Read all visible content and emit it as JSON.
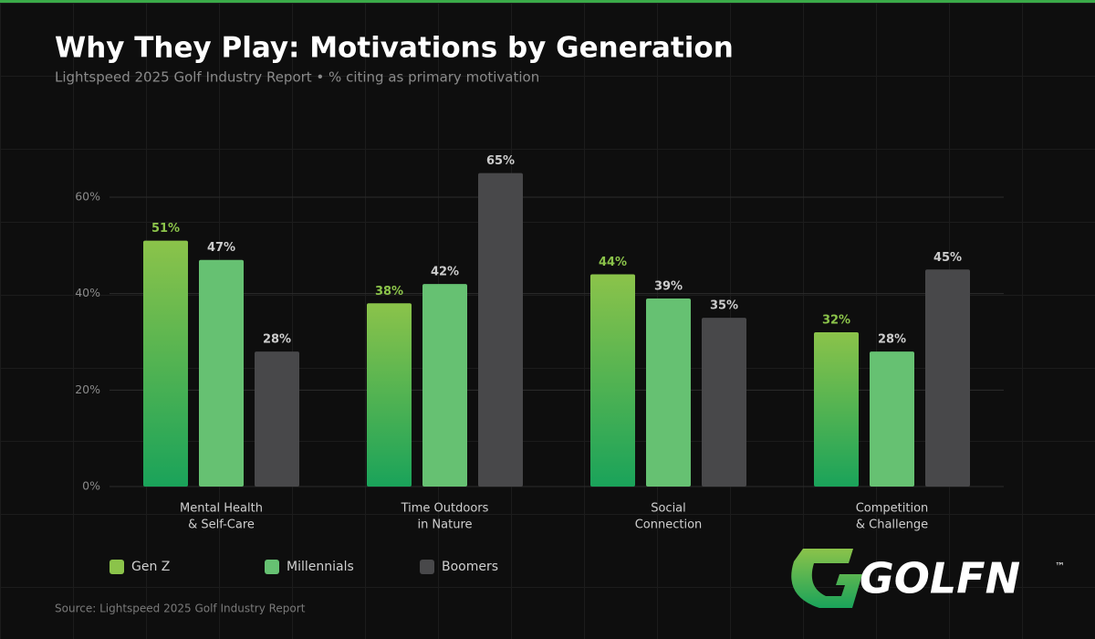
{
  "chart_data": {
    "type": "bar",
    "title": "Why They Play: Motivations by Generation",
    "subtitle": "Lightspeed 2025 Golf Industry Report  •  % citing as primary motivation",
    "source": "Source: Lightspeed 2025 Golf Industry Report",
    "logo": {
      "text": "GOLFN",
      "mark": "™"
    },
    "categories": [
      [
        "Mental Health",
        "& Self-Care"
      ],
      [
        "Time Outdoors",
        "in Nature"
      ],
      [
        "Social",
        "Connection"
      ],
      [
        "Competition",
        "& Challenge"
      ]
    ],
    "series": [
      {
        "name": "Gen Z",
        "color": "#8bc34a",
        "gradient_end": "#1aa35a",
        "label_color": "#8bc34a",
        "values": [
          51,
          38,
          44,
          32
        ],
        "value_labels": [
          "51%",
          "38%",
          "44%",
          "32%"
        ]
      },
      {
        "name": "Millennials",
        "color": "#66c172",
        "label_color": "#cccccc",
        "values": [
          47,
          42,
          39,
          28
        ],
        "value_labels": [
          "47%",
          "42%",
          "39%",
          "28%"
        ]
      },
      {
        "name": "Boomers",
        "color": "#48484a",
        "label_color": "#cccccc",
        "values": [
          28,
          65,
          35,
          45
        ],
        "value_labels": [
          "28%",
          "65%",
          "35%",
          "45%"
        ]
      }
    ],
    "ylim": [
      0,
      70
    ],
    "yticks": [
      {
        "value": 0,
        "label": "0%"
      },
      {
        "value": 20,
        "label": "20%"
      },
      {
        "value": 40,
        "label": "40%"
      },
      {
        "value": 60,
        "label": "60%"
      }
    ],
    "grid": true
  }
}
